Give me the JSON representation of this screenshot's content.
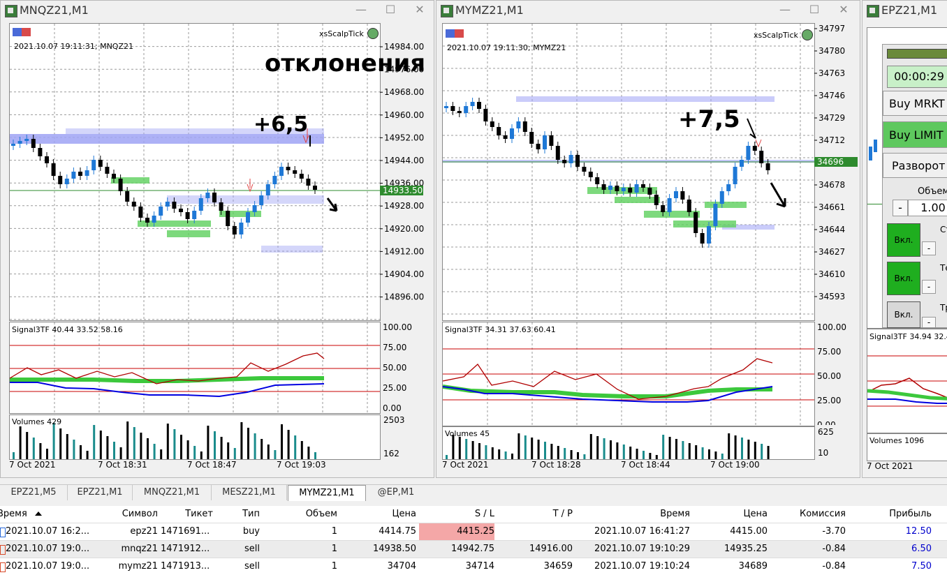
{
  "windows": [
    {
      "title": "MNQZ21,M1",
      "indicator": "xsScalpTick",
      "timestamp_label": "2021.10.07 19:11:31; MNQZ21",
      "price_ticks": [
        "14984.00",
        "14976.00",
        "14968.00",
        "14960.00",
        "14952.00",
        "14944.00",
        "14936.00",
        "14928.00",
        "14920.00",
        "14912.00",
        "14904.00",
        "14896.00"
      ],
      "current_price": "14933.50",
      "annotation_main": "отклонения по тренду",
      "annotation_profit": "+6,5",
      "signal_label": "Signal3TF 40.44 33.52 58.16",
      "signal_ticks": [
        "100.00",
        "75.00",
        "50.00",
        "25.00",
        "0.00"
      ],
      "volume_label": "Volumes 429",
      "volume_ticks": [
        "2503",
        "162"
      ],
      "time_ticks": [
        "7 Oct 2021",
        "7 Oct 18:31",
        "7 Oct 18:47",
        "7 Oct 19:03"
      ]
    },
    {
      "title": "MYMZ21,M1",
      "indicator": "xsScalpTick",
      "timestamp_label": "2021.10.07 19:11:30; MYMZ21",
      "price_ticks": [
        "34797",
        "34780",
        "34763",
        "34746",
        "34729",
        "34712",
        "34696",
        "34678",
        "34661",
        "34644",
        "34627",
        "34610",
        "34593"
      ],
      "current_price": "34696",
      "annotation_profit": "+7,5",
      "signal_label": "Signal3TF 34.31 37.63 60.41",
      "signal_ticks": [
        "100.00",
        "75.00",
        "50.00",
        "25.00",
        "0.00"
      ],
      "volume_label": "Volumes 45",
      "volume_ticks": [
        "625",
        "10"
      ],
      "time_ticks": [
        "7 Oct 2021",
        "7 Oct 18:28",
        "7 Oct 18:44",
        "7 Oct 19:00"
      ]
    },
    {
      "title": "EPZ21,M1",
      "timer": "00:00:29",
      "buy_market": "Buy MRKT",
      "buy_limit": "Buy LIMIT",
      "reverse": "Разворот",
      "volume_label": "Объем",
      "volume_value": "1.00",
      "minus": "-",
      "enable": "Вкл.",
      "row_labels": [
        "Ст",
        "Тей",
        "Тр"
      ],
      "signal_label": "Signal3TF 34.94 32.4",
      "volumes_label": "Volumes 1096",
      "time_tick": "7 Oct 2021"
    }
  ],
  "tabs": [
    "EPZ21,M5",
    "EPZ21,M1",
    "MNQZ21,M1",
    "MESZ21,M1",
    "MYMZ21,M1",
    "@EP,M1"
  ],
  "active_tab": "MYMZ21,M1",
  "table": {
    "headers": [
      "Время",
      "Символ",
      "Тикет",
      "Тип",
      "Объем",
      "Цена",
      "S / L",
      "T / P",
      "Время",
      "Цена",
      "Комиссия",
      "Прибыль"
    ],
    "rows": [
      [
        "2021.10.07 16:2...",
        "epz21",
        "1471691...",
        "buy",
        "1",
        "4414.75",
        "4415.25",
        "",
        "2021.10.07 16:41:27",
        "4415.00",
        "-3.70",
        "12.50"
      ],
      [
        "2021.10.07 19:0...",
        "mnqz21",
        "1471912...",
        "sell",
        "1",
        "14938.50",
        "14942.75",
        "14916.00",
        "2021.10.07 19:10:29",
        "14935.25",
        "-0.84",
        "6.50"
      ],
      [
        "2021.10.07 19:0...",
        "mymz21",
        "1471913...",
        "sell",
        "1",
        "34704",
        "34714",
        "34659",
        "2021.10.07 19:10:24",
        "34689",
        "-0.84",
        "7.50"
      ]
    ]
  },
  "colors": {
    "bull": "#1e78d6",
    "bear": "#000000",
    "zone_blue": "#9fa3f5",
    "zone_green": "#5ccf5c",
    "signal_red": "#c80000",
    "signal_green": "#3cc83c",
    "signal_blue": "#0000e0",
    "volume_teal": "#1a8c8c",
    "price_line": "#2e8b2e",
    "sl_highlight": "#f4a7a7",
    "profit": "#0000cc"
  }
}
